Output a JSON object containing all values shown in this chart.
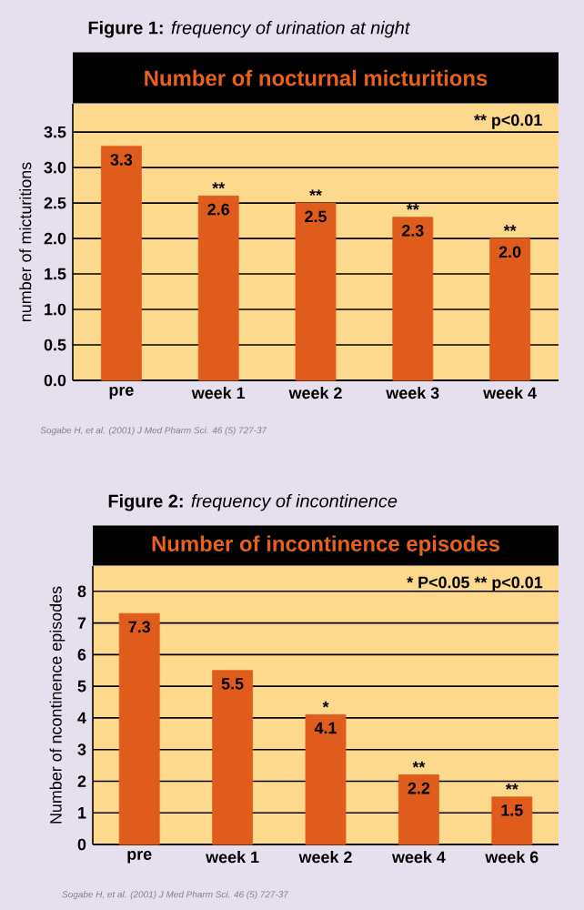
{
  "chart_data": [
    {
      "type": "bar",
      "title": "**Figure 1:** *frequency of urination at night*",
      "subtitle": "Number of nocturnal micturitions",
      "ylabel": "number of micturitions",
      "categories": [
        "pre",
        "week 1",
        "week 2",
        "week 3",
        "week 4"
      ],
      "values": [
        3.3,
        2.6,
        2.5,
        2.3,
        2.0
      ],
      "color": "#e05c1c",
      "ylim": [
        0,
        3.9
      ],
      "yticks": [
        {
          "value": 0,
          "label": "0.0"
        },
        0.5,
        {
          "value": 1,
          "label": "1.0"
        },
        1.5,
        {
          "value": 2,
          "label": "2.0"
        },
        2.5,
        {
          "value": 3,
          "label": "3.0"
        },
        3.5
      ],
      "grid": "y",
      "value_labels": [
        "3.3",
        "2.6",
        "2.5",
        "2.3",
        "2.0"
      ],
      "annotations": [
        "** p<0.01",
        "Sogabe H, et al. (2001) J Med Pharm Sci. 46 (5) 727-37",
        {
          "text": "**",
          "x": "week 1",
          "y": 2.6
        },
        {
          "text": "**",
          "x": "week 2",
          "y": 2.5
        },
        {
          "text": "**",
          "x": "week 3",
          "y": 2.3
        },
        {
          "text": "**",
          "x": "week 4",
          "y": 2.0
        }
      ]
    },
    {
      "type": "bar",
      "title": "**Figure 2:** *frequency of incontinence*",
      "subtitle": "Number of incontinence episodes",
      "ylabel": "Number of ncontinence episodes",
      "categories": [
        "pre",
        "week 1",
        "week 2",
        "week 4",
        "week 6"
      ],
      "values": [
        7.3,
        5.5,
        4.1,
        2.2,
        1.5
      ],
      "color": "#e05c1c",
      "ylim": [
        0,
        8.8
      ],
      "yticks": [
        0,
        1,
        2,
        3,
        4,
        5,
        6,
        7,
        8
      ],
      "grid": "y",
      "data_labels": true,
      "annotations": [
        "* P<0.05 ** p<0.01",
        "Sogabe H, et al. (2001) J Med Pharm Sci. 46 (5) 727-37",
        {
          "text": "*",
          "x": "week 2",
          "y": 4.1
        },
        {
          "text": "**",
          "x": "week 4",
          "y": 2.2
        },
        {
          "text": "**",
          "x": "week 6",
          "y": 1.5
        }
      ]
    }
  ]
}
